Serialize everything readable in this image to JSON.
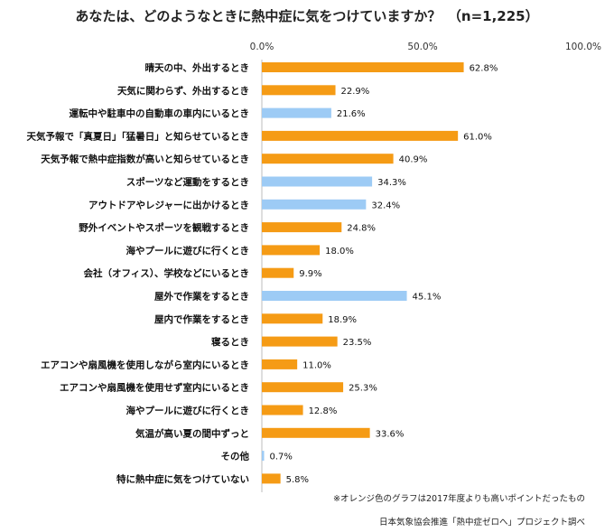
{
  "colors": {
    "orange": "#F59B15",
    "blue": "#9DCBF5"
  },
  "chart_data": {
    "type": "bar",
    "orientation": "horizontal",
    "title": "あなたは、どのようなときに熱中症に気をつけていますか？　（n=1,225）",
    "xlim": [
      0,
      100
    ],
    "x_ticks": [
      "0.0%",
      "50.0%",
      "100.0%"
    ],
    "grid": false,
    "categories": [
      "晴天の中、外出するとき",
      "天気に関わらず、外出するとき",
      "運転中や駐車中の自動車の車内にいるとき",
      "天気予報で「真夏日」「猛暑日」と知らせているとき",
      "天気予報で熱中症指数が高いと知らせているとき",
      "スポーツなど運動をするとき",
      "アウトドアやレジャーに出かけるとき",
      "野外イベントやスポーツを観戦するとき",
      "海やプールに遊びに行くとき",
      "会社（オフィス）、学校などにいるとき",
      "屋外で作業をするとき",
      "屋内で作業をするとき",
      "寝るとき",
      "エアコンや扇風機を使用しながら室内にいるとき",
      "エアコンや扇風機を使用せず室内にいるとき",
      "海やプールに遊びに行くとき",
      "気温が高い夏の間中ずっと",
      "その他",
      "特に熱中症に気をつけていない"
    ],
    "values": [
      62.8,
      22.9,
      21.6,
      61.0,
      40.9,
      34.3,
      32.4,
      24.8,
      18.0,
      9.9,
      45.1,
      18.9,
      23.5,
      11.0,
      25.3,
      12.8,
      33.6,
      0.7,
      5.8
    ],
    "value_labels": [
      "62.8%",
      "22.9%",
      "21.6%",
      "61.0%",
      "40.9%",
      "34.3%",
      "32.4%",
      "24.8%",
      "18.0%",
      "9.9%",
      "45.1%",
      "18.9%",
      "23.5%",
      "11.0%",
      "25.3%",
      "12.8%",
      "33.6%",
      "0.7%",
      "5.8%"
    ],
    "bar_colors": [
      "orange",
      "orange",
      "blue",
      "orange",
      "orange",
      "blue",
      "blue",
      "orange",
      "orange",
      "orange",
      "blue",
      "orange",
      "orange",
      "orange",
      "orange",
      "orange",
      "orange",
      "blue",
      "orange"
    ],
    "notes": [
      "※オレンジ色のグラフは2017年度よりも高いポイントだったもの",
      "日本気象協会推進「熱中症ゼロへ」プロジェクト調べ"
    ]
  }
}
